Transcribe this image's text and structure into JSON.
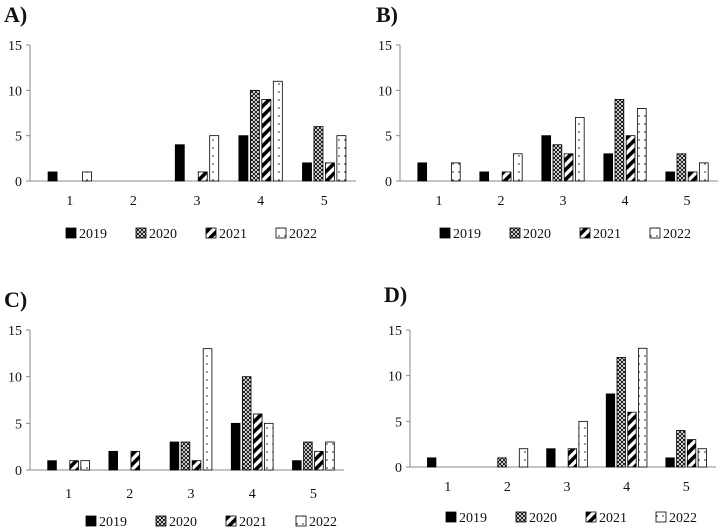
{
  "chart_data": [
    {
      "type": "bar",
      "panel_label": "A)",
      "categories": [
        "1",
        "2",
        "3",
        "4",
        "5"
      ],
      "ylim": [
        0,
        15
      ],
      "yticks": [
        "0",
        "5",
        "10",
        "15"
      ],
      "grid": false,
      "legend_position": "bottom",
      "series": [
        {
          "name": "2019",
          "values": [
            1,
            0,
            4,
            5,
            2
          ]
        },
        {
          "name": "2020",
          "values": [
            0,
            0,
            0,
            10,
            6
          ]
        },
        {
          "name": "2021",
          "values": [
            0,
            0,
            1,
            9,
            2
          ]
        },
        {
          "name": "2022",
          "values": [
            1,
            0,
            5,
            11,
            5
          ]
        }
      ]
    },
    {
      "type": "bar",
      "panel_label": "B)",
      "categories": [
        "1",
        "2",
        "3",
        "4",
        "5"
      ],
      "ylim": [
        0,
        15
      ],
      "yticks": [
        "0",
        "5",
        "10",
        "15"
      ],
      "grid": false,
      "legend_position": "bottom",
      "series": [
        {
          "name": "2019",
          "values": [
            2,
            1,
            5,
            3,
            1
          ]
        },
        {
          "name": "2020",
          "values": [
            0,
            0,
            4,
            9,
            3
          ]
        },
        {
          "name": "2021",
          "values": [
            0,
            1,
            3,
            5,
            1
          ]
        },
        {
          "name": "2022",
          "values": [
            2,
            3,
            7,
            8,
            2
          ]
        }
      ]
    },
    {
      "type": "bar",
      "panel_label": "C)",
      "categories": [
        "1",
        "2",
        "3",
        "4",
        "5"
      ],
      "ylim": [
        0,
        15
      ],
      "yticks": [
        "0",
        "5",
        "10",
        "15"
      ],
      "grid": false,
      "legend_position": "bottom",
      "series": [
        {
          "name": "2019",
          "values": [
            1,
            2,
            3,
            5,
            1
          ]
        },
        {
          "name": "2020",
          "values": [
            0,
            0,
            3,
            10,
            3
          ]
        },
        {
          "name": "2021",
          "values": [
            1,
            2,
            1,
            6,
            2
          ]
        },
        {
          "name": "2022",
          "values": [
            1,
            0,
            13,
            5,
            3
          ]
        }
      ]
    },
    {
      "type": "bar",
      "panel_label": "D)",
      "categories": [
        "1",
        "2",
        "3",
        "4",
        "5"
      ],
      "ylim": [
        0,
        15
      ],
      "yticks": [
        "0",
        "5",
        "10",
        "15"
      ],
      "grid": false,
      "legend_position": "bottom",
      "series": [
        {
          "name": "2019",
          "values": [
            1,
            0,
            2,
            8,
            1
          ]
        },
        {
          "name": "2020",
          "values": [
            0,
            1,
            0,
            12,
            4
          ]
        },
        {
          "name": "2021",
          "values": [
            0,
            0,
            2,
            6,
            3
          ]
        },
        {
          "name": "2022",
          "values": [
            0,
            2,
            5,
            13,
            2
          ]
        }
      ]
    }
  ],
  "series_styles": [
    {
      "fill": "solid-black",
      "color": "#000000"
    },
    {
      "fill": "crosshatch",
      "color": "#000000"
    },
    {
      "fill": "diagonal-stripes",
      "color": "#000000"
    },
    {
      "fill": "white-dotted",
      "color": "#000000"
    }
  ]
}
